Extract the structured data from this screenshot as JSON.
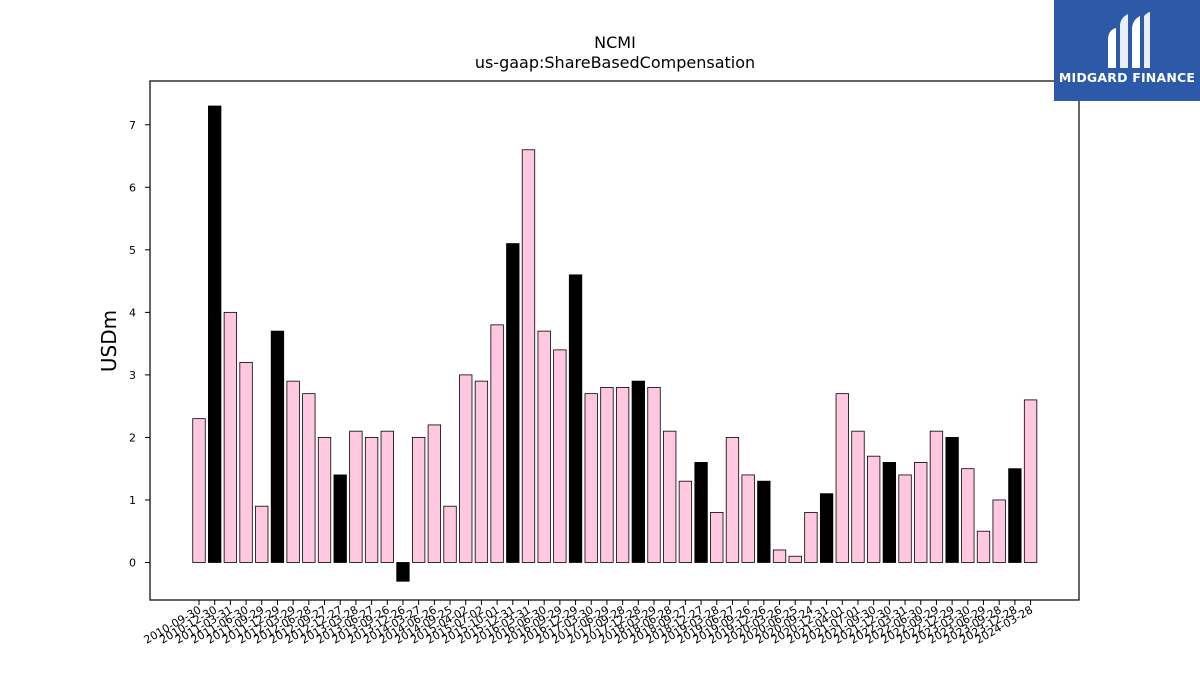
{
  "chart_data": {
    "type": "bar",
    "title": "NCMI",
    "subtitle": "us-gaap:ShareBasedCompensation",
    "xlabel": "",
    "ylabel": "USDm",
    "ylim": [
      -0.6,
      7.7
    ],
    "yticks": [
      0,
      1,
      2,
      3,
      4,
      5,
      6,
      7
    ],
    "grid": false,
    "legend": "none",
    "colors": {
      "quarterly": "#ffc8e0",
      "annual": "#000000",
      "edge": "#000000"
    },
    "categories": [
      "2010-09-30",
      "2010-12-30",
      "2011-03-31",
      "2011-06-30",
      "2011-09-29",
      "2011-12-29",
      "2012-03-29",
      "2012-06-28",
      "2012-09-27",
      "2012-12-27",
      "2013-03-28",
      "2013-06-27",
      "2013-09-26",
      "2013-12-26",
      "2014-03-27",
      "2014-06-26",
      "2014-09-25",
      "2015-04-02",
      "2015-07-02",
      "2015-10-01",
      "2015-12-31",
      "2016-03-31",
      "2016-06-30",
      "2016-09-29",
      "2016-12-29",
      "2017-03-30",
      "2017-06-29",
      "2017-09-28",
      "2017-12-28",
      "2018-03-29",
      "2018-06-28",
      "2018-09-27",
      "2018-12-27",
      "2019-03-28",
      "2019-06-27",
      "2019-09-26",
      "2019-12-26",
      "2020-03-26",
      "2020-06-25",
      "2020-09-24",
      "2020-12-31",
      "2021-04-01",
      "2021-07-01",
      "2021-09-30",
      "2021-12-30",
      "2022-03-31",
      "2022-06-30",
      "2022-09-29",
      "2022-12-29",
      "2023-03-30",
      "2023-06-29",
      "2023-09-28",
      "2023-12-28",
      "2024-03-28"
    ],
    "values": [
      2.3,
      7.3,
      4.0,
      3.2,
      0.9,
      3.7,
      2.9,
      2.7,
      2.0,
      1.4,
      2.1,
      2.0,
      2.1,
      -0.3,
      2.0,
      2.2,
      0.9,
      3.0,
      2.9,
      3.8,
      5.1,
      6.6,
      3.7,
      3.4,
      4.6,
      2.7,
      2.8,
      2.8,
      2.9,
      2.8,
      2.1,
      1.3,
      1.6,
      0.8,
      2.0,
      1.4,
      1.3,
      0.2,
      0.1,
      0.8,
      1.1,
      2.7,
      2.1,
      1.7,
      1.6,
      1.4,
      1.6,
      2.1,
      2.0,
      1.5,
      0.5,
      1.0,
      1.5,
      2.6
    ],
    "highlighted": [
      false,
      true,
      false,
      false,
      false,
      true,
      false,
      false,
      false,
      true,
      false,
      false,
      false,
      true,
      false,
      false,
      false,
      false,
      false,
      false,
      true,
      false,
      false,
      false,
      true,
      false,
      false,
      false,
      true,
      false,
      false,
      false,
      true,
      false,
      false,
      false,
      true,
      false,
      false,
      false,
      true,
      false,
      false,
      false,
      true,
      false,
      false,
      false,
      true,
      false,
      false,
      false,
      true,
      false
    ]
  },
  "logo": {
    "text": "MIDGARD FINANCE",
    "color": "#2c5aa8"
  }
}
